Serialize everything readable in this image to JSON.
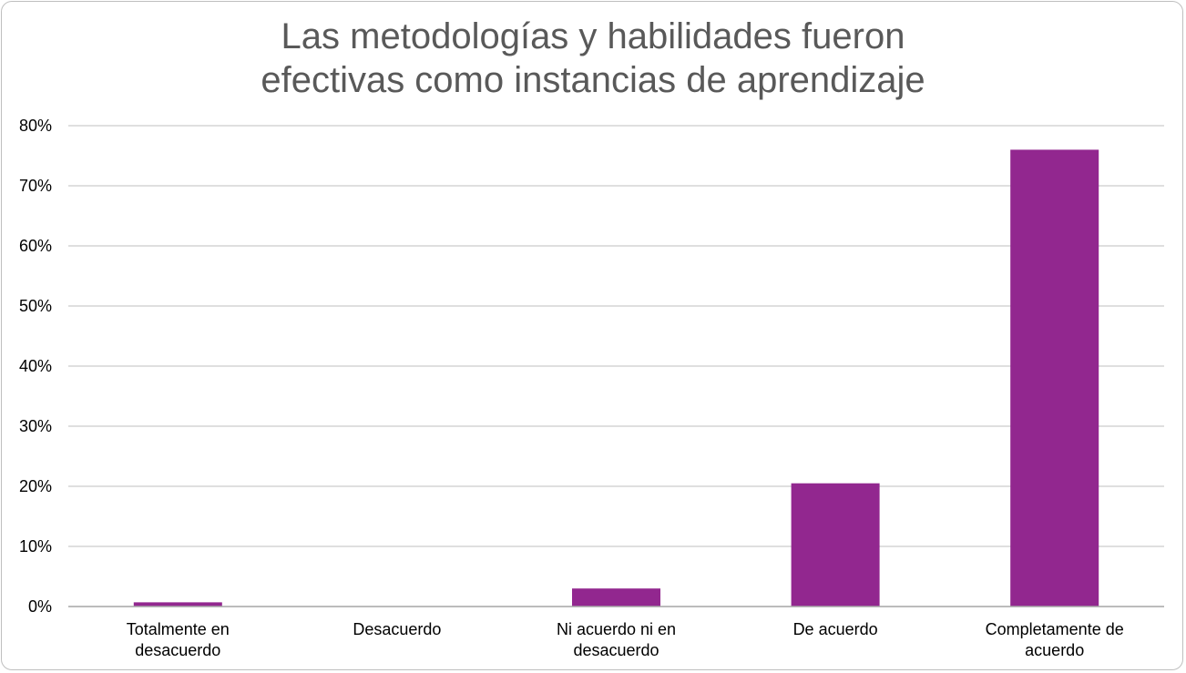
{
  "chart_data": {
    "type": "bar",
    "title_lines": [
      "Las metodologías y habilidades fueron",
      "efectivas como instancias de aprendizaje"
    ],
    "xlabel": "",
    "ylabel": "",
    "categories": [
      [
        "Totalmente en",
        "desacuerdo"
      ],
      [
        "Desacuerdo"
      ],
      [
        "Ni acuerdo ni en",
        "desacuerdo"
      ],
      [
        "De acuerdo"
      ],
      [
        "Completamente de",
        "acuerdo"
      ]
    ],
    "values": [
      0.7,
      0,
      3.0,
      20.5,
      76.0
    ],
    "ylim": [
      0,
      80
    ],
    "y_ticks": [
      0,
      10,
      20,
      30,
      40,
      50,
      60,
      70,
      80
    ],
    "y_tick_labels": [
      "0%",
      "10%",
      "20%",
      "30%",
      "40%",
      "50%",
      "60%",
      "70%",
      "80%"
    ],
    "grid": true,
    "legend": "none",
    "colors": {
      "bar": "#92278f",
      "grid": "#bfbfbf",
      "axis": "#a6a6a6",
      "title": "#595959",
      "border": "#bfbfbf"
    }
  }
}
